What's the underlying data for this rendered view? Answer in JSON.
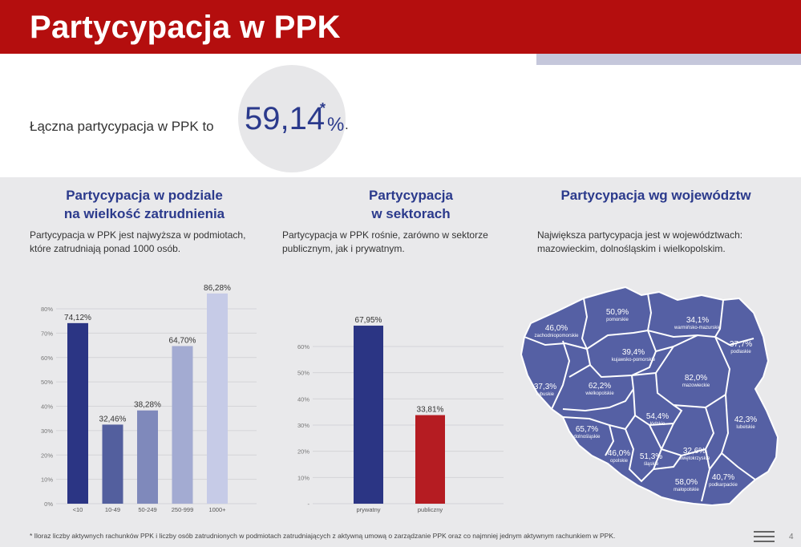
{
  "header": {
    "title": "Partycypacja w PPK"
  },
  "kpi": {
    "label": "Łączna partycypacja w PPK to",
    "value": "59,14",
    "star": "*",
    "pct": "%",
    "dot": "."
  },
  "sections": {
    "size": {
      "title_line1": "Partycypacja w podziale",
      "title_line2": "na wielkość zatrudnienia",
      "desc_line1": "Partycypacja w PPK jest najwyższa w podmiotach,",
      "desc_line2": "które zatrudniają ponad 1000 osób."
    },
    "sector": {
      "title_line1": "Partycypacja",
      "title_line2": "w sektorach",
      "desc_line1": "Partycypacja w PPK rośnie, zarówno w sektorze",
      "desc_line2": "publicznym, jak i prywatnym."
    },
    "region": {
      "title": "Partycypacja wg województw",
      "desc_line1": "Największa partycypacja jest w województwach:",
      "desc_line2": "mazowieckim, dolnośląskim i wielkopolskim."
    }
  },
  "chart_data": [
    {
      "type": "bar",
      "categories": [
        "<10",
        "10-49",
        "50-249",
        "250-999",
        "1000+"
      ],
      "values": [
        74.12,
        32.46,
        38.28,
        64.7,
        86.28
      ],
      "value_labels": [
        "74,12%",
        "32,46%",
        "38,28%",
        "64,70%",
        "86,28%"
      ],
      "colors": [
        "#2b3584",
        "#535f9e",
        "#7f89bb",
        "#a3abd2",
        "#c6cbe7"
      ],
      "yticks": [
        "0%",
        "10%",
        "20%",
        "30%",
        "40%",
        "50%",
        "60%",
        "70%",
        "80%"
      ],
      "ylim": [
        0,
        80
      ],
      "grid": true
    },
    {
      "type": "bar",
      "categories": [
        "prywatny",
        "publiczny"
      ],
      "values": [
        67.95,
        33.81
      ],
      "value_labels": [
        "67,95%",
        "33,81%"
      ],
      "colors": [
        "#2b3584",
        "#b51c22"
      ],
      "yticks": [
        "-",
        "10%",
        "20%",
        "30%",
        "40%",
        "50%",
        "60%"
      ],
      "ylim": [
        0,
        60
      ],
      "grid": true
    }
  ],
  "map": {
    "fill": "#5560a4",
    "regions": [
      {
        "name": "zachodniopomorskie",
        "value": "46,0%"
      },
      {
        "name": "pomorskie",
        "value": "50,9%"
      },
      {
        "name": "warmińsko-mazurskie",
        "value": "34,1%"
      },
      {
        "name": "podlaskie",
        "value": "37,7%"
      },
      {
        "name": "kujawsko-pomorskie",
        "value": "39,4%"
      },
      {
        "name": "lubuskie",
        "value": "37,3%"
      },
      {
        "name": "wielkopolskie",
        "value": "62,2%"
      },
      {
        "name": "mazowieckie",
        "value": "82,0%"
      },
      {
        "name": "łódzkie",
        "value": "54,4%"
      },
      {
        "name": "lubelskie",
        "value": "42,3%"
      },
      {
        "name": "dolnośląskie",
        "value": "65,7%"
      },
      {
        "name": "opolskie",
        "value": "46,0%"
      },
      {
        "name": "śląskie",
        "value": "51,3%"
      },
      {
        "name": "świętokrzyskie",
        "value": "32,6%"
      },
      {
        "name": "małopolskie",
        "value": "58,0%"
      },
      {
        "name": "podkarpackie",
        "value": "40,7%"
      }
    ]
  },
  "footnote": "* Iloraz liczby aktywnych rachunków PPK i liczby osób zatrudnionych w podmiotach zatrudniających z aktywną umową o zarządzanie PPK oraz co najmniej jednym aktywnym rachunkiem w PPK.",
  "page_number": "4",
  "icons": {
    "menu": "menu-icon"
  }
}
